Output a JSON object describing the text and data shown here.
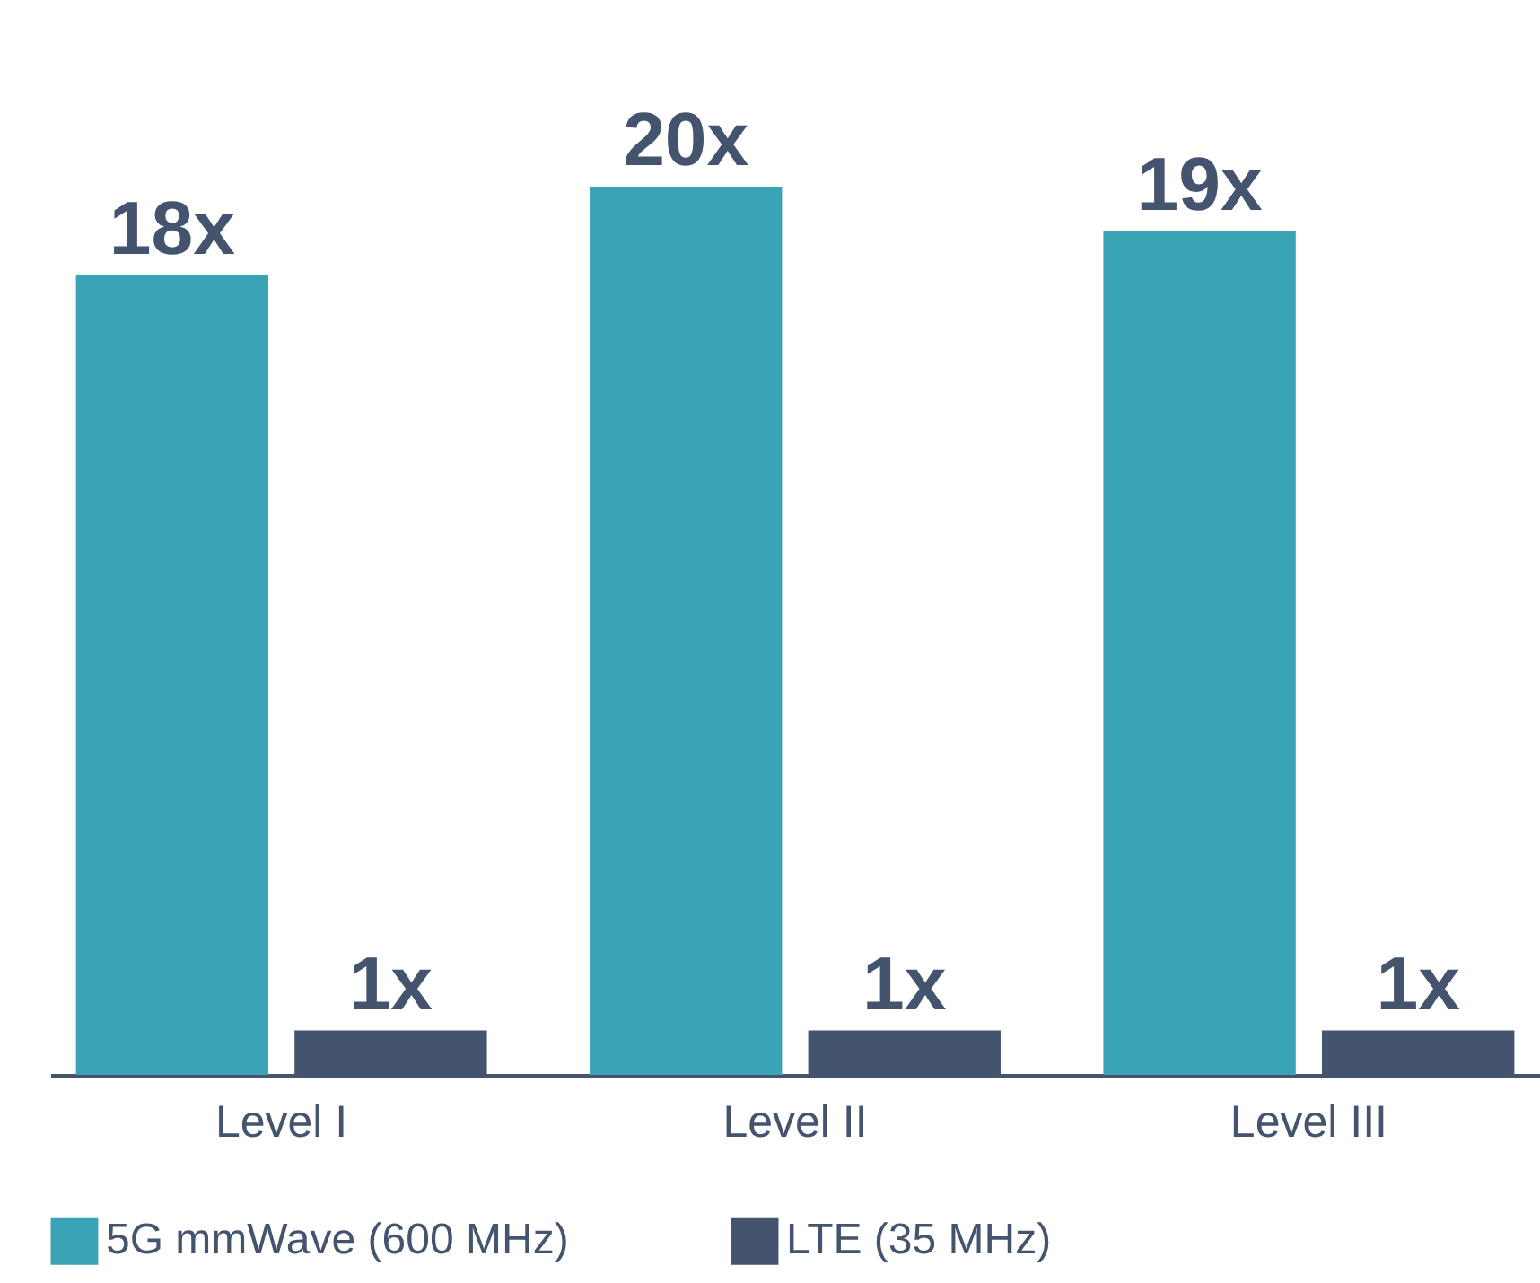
{
  "chart_data": {
    "type": "bar",
    "legend": "bottom",
    "tick_labels": "x",
    "categories": [
      "Level I",
      "Level II",
      "Level III"
    ],
    "series": [
      {
        "name": "5G mmWave (600 MHz)",
        "color": "#3aa3b5",
        "values": [
          18,
          20,
          19
        ],
        "value_labels": [
          "18x",
          "20x",
          "19x"
        ]
      },
      {
        "name": "LTE (35 MHz)",
        "color": "#44546f",
        "values": [
          1,
          1,
          1
        ],
        "value_labels": [
          "1x",
          "1x",
          "1x"
        ]
      }
    ]
  }
}
